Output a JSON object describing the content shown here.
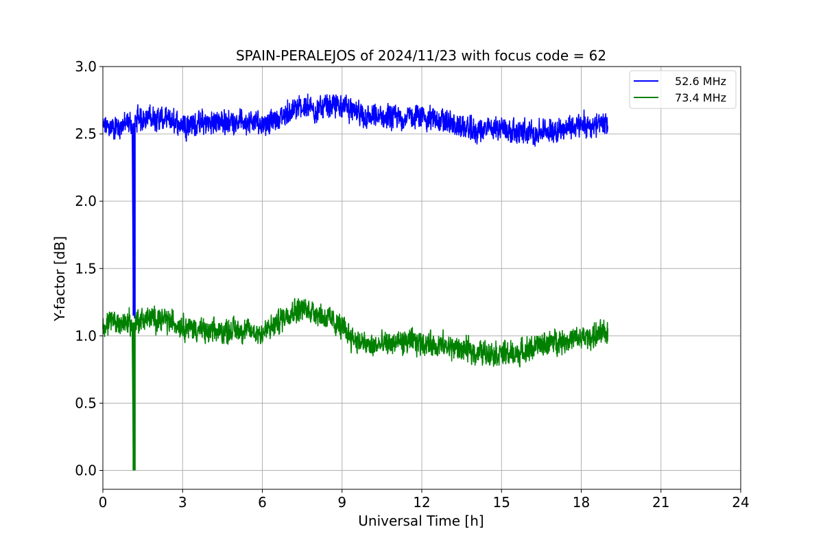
{
  "chart_data": {
    "type": "line",
    "title": "SPAIN-PERALEJOS of 2024/11/23 with focus code = 62",
    "xlabel": "Universal Time [h]",
    "ylabel": "Y-factor [dB]",
    "xlim": [
      0,
      24
    ],
    "ylim": [
      -0.14,
      3.0
    ],
    "xticks": [
      0,
      3,
      6,
      9,
      12,
      15,
      18,
      21,
      24
    ],
    "yticks": [
      0.0,
      0.5,
      1.0,
      1.5,
      2.0,
      2.5,
      3.0
    ],
    "xtick_labels": [
      "0",
      "3",
      "6",
      "9",
      "12",
      "15",
      "18",
      "21",
      "24"
    ],
    "ytick_labels": [
      "0.0",
      "0.5",
      "1.0",
      "1.5",
      "2.0",
      "2.5",
      "3.0"
    ],
    "grid": true,
    "legend_position": "top-right",
    "series": [
      {
        "name": "52.6 MHz",
        "color": "#0000ff",
        "x": [
          0,
          0.5,
          1.0,
          1.1,
          1.15,
          1.2,
          1.3,
          2,
          3,
          4,
          5,
          6,
          6.5,
          7,
          7.5,
          8,
          8.5,
          9,
          9.5,
          10,
          11,
          12,
          13,
          14,
          15,
          15.5,
          16,
          17,
          18,
          19
        ],
        "y": [
          2.55,
          2.55,
          2.58,
          2.58,
          1.15,
          2.58,
          2.62,
          2.62,
          2.57,
          2.58,
          2.6,
          2.58,
          2.6,
          2.66,
          2.7,
          2.68,
          2.7,
          2.72,
          2.65,
          2.62,
          2.62,
          2.63,
          2.58,
          2.52,
          2.55,
          2.52,
          2.5,
          2.53,
          2.56,
          2.57
        ],
        "noise_amplitude": 0.15
      },
      {
        "name": "73.4 MHz",
        "color": "#008000",
        "x": [
          0,
          0.5,
          1.0,
          1.1,
          1.15,
          1.2,
          1.3,
          2,
          3,
          4,
          5,
          6,
          6.5,
          7,
          7.5,
          8,
          8.5,
          9,
          9.5,
          10,
          11,
          12,
          13,
          14,
          15,
          15.5,
          16,
          17,
          18,
          19
        ],
        "y": [
          1.08,
          1.1,
          1.1,
          1.08,
          0.0,
          1.1,
          1.12,
          1.13,
          1.08,
          1.02,
          1.05,
          1.02,
          1.08,
          1.18,
          1.2,
          1.18,
          1.12,
          1.06,
          0.97,
          0.92,
          0.95,
          0.95,
          0.92,
          0.88,
          0.87,
          0.86,
          0.9,
          0.96,
          0.98,
          1.02
        ],
        "noise_amplitude": 0.15
      }
    ]
  }
}
